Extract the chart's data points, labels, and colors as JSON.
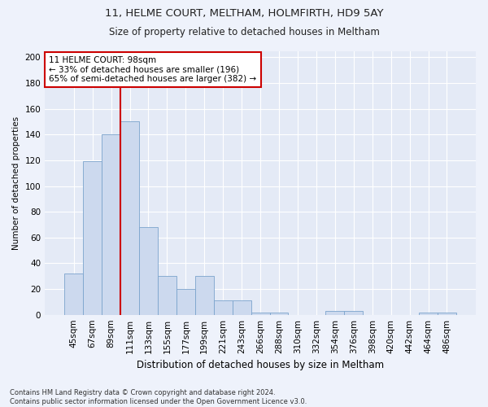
{
  "title1": "11, HELME COURT, MELTHAM, HOLMFIRTH, HD9 5AY",
  "title2": "Size of property relative to detached houses in Meltham",
  "xlabel": "Distribution of detached houses by size in Meltham",
  "ylabel": "Number of detached properties",
  "bar_labels": [
    "45sqm",
    "67sqm",
    "89sqm",
    "111sqm",
    "133sqm",
    "155sqm",
    "177sqm",
    "199sqm",
    "221sqm",
    "243sqm",
    "266sqm",
    "288sqm",
    "310sqm",
    "332sqm",
    "354sqm",
    "376sqm",
    "398sqm",
    "420sqm",
    "442sqm",
    "464sqm",
    "486sqm"
  ],
  "bar_values": [
    32,
    119,
    140,
    150,
    68,
    30,
    20,
    30,
    11,
    11,
    2,
    2,
    0,
    0,
    3,
    3,
    0,
    0,
    0,
    2,
    2
  ],
  "bar_color": "#ccd9ee",
  "bar_edge_color": "#7ba3cc",
  "vline_x": 2.5,
  "vline_color": "#cc0000",
  "annotation_text": "11 HELME COURT: 98sqm\n← 33% of detached houses are smaller (196)\n65% of semi-detached houses are larger (382) →",
  "annotation_box_color": "white",
  "annotation_box_edge": "#cc0000",
  "ylim": [
    0,
    205
  ],
  "yticks": [
    0,
    20,
    40,
    60,
    80,
    100,
    120,
    140,
    160,
    180,
    200
  ],
  "footnote": "Contains HM Land Registry data © Crown copyright and database right 2024.\nContains public sector information licensed under the Open Government Licence v3.0.",
  "bg_color": "#eef2fb",
  "plot_bg_color": "#e4eaf6",
  "title1_fontsize": 9.5,
  "title2_fontsize": 8.5,
  "xlabel_fontsize": 8.5,
  "ylabel_fontsize": 7.5,
  "tick_fontsize": 7.5,
  "annot_fontsize": 7.5,
  "footnote_fontsize": 6.0
}
